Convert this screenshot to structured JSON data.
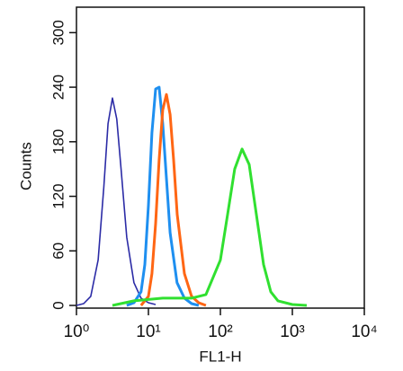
{
  "chart_data": {
    "type": "line",
    "xlabel": "FL1-H",
    "ylabel": "Counts",
    "xscale": "log",
    "xlim": [
      1,
      10000
    ],
    "ylim": [
      0,
      328
    ],
    "xticks": [
      {
        "value": 1,
        "label": "10⁰"
      },
      {
        "value": 10,
        "label": "10¹"
      },
      {
        "value": 100,
        "label": "10²"
      },
      {
        "value": 1000,
        "label": "10³"
      },
      {
        "value": 10000,
        "label": "10⁴"
      }
    ],
    "yticks": [
      0,
      60,
      120,
      180,
      240,
      300
    ],
    "series": [
      {
        "color": "#2b2ba6",
        "width": 1.6,
        "x": [
          1,
          1.26,
          1.58,
          2.0,
          2.4,
          2.75,
          3.16,
          3.63,
          4.17,
          5.0,
          6.3,
          7.9,
          10,
          12.6
        ],
        "values": [
          0,
          2,
          10,
          50,
          130,
          200,
          228,
          205,
          150,
          75,
          25,
          8,
          3,
          1
        ]
      },
      {
        "color": "#1e8ff0",
        "width": 3,
        "x": [
          5.0,
          6.3,
          7.9,
          8.9,
          10,
          11.2,
          12.6,
          14.1,
          15.8,
          17.8,
          20,
          25,
          31.6,
          39.8,
          50
        ],
        "values": [
          0,
          3,
          15,
          45,
          110,
          190,
          238,
          240,
          200,
          140,
          80,
          25,
          8,
          2,
          0
        ]
      },
      {
        "color": "#ff6614",
        "width": 3,
        "x": [
          7.9,
          10,
          11.2,
          12.6,
          14.1,
          15.8,
          17.8,
          20,
          22.4,
          25.1,
          31.6,
          39.8,
          50,
          63
        ],
        "values": [
          0,
          10,
          35,
          90,
          160,
          215,
          232,
          210,
          160,
          100,
          35,
          10,
          3,
          0
        ]
      },
      {
        "color": "#30e030",
        "width": 3,
        "x": [
          3.16,
          6.3,
          15.8,
          39.8,
          63,
          100,
          126,
          158,
          200,
          251,
          316,
          398,
          501,
          631,
          1000,
          1585
        ],
        "values": [
          0,
          5,
          8,
          8,
          12,
          50,
          100,
          150,
          172,
          155,
          100,
          45,
          15,
          5,
          1,
          0
        ]
      }
    ]
  }
}
